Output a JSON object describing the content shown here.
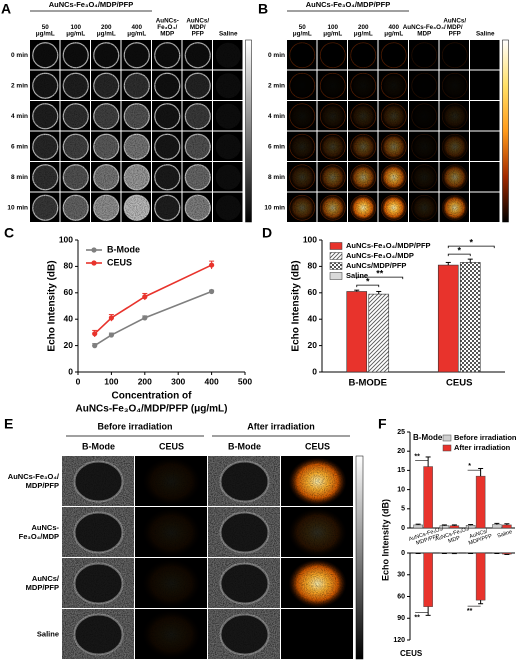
{
  "panels": {
    "A": {
      "letter": "A",
      "title": "AuNCs-Fe₃O₄/MDP/PFP",
      "columns": [
        [
          "50",
          "μg/mL"
        ],
        [
          "100",
          "μg/mL"
        ],
        [
          "200",
          "μg/mL"
        ],
        [
          "400",
          "μg/mL"
        ],
        [
          "AuNCs-",
          "Fe₃O₄/",
          "MDP"
        ],
        [
          "AuNCs/",
          "MDP/",
          "PFP"
        ],
        "Saline"
      ],
      "rows": [
        "0 min",
        "2 min",
        "4 min",
        "6 min",
        "8 min",
        "10 min"
      ]
    },
    "B": {
      "letter": "B",
      "title": "AuNCs-Fe₃O₄/MDP/PFP",
      "columns": [
        [
          "50",
          "μg/mL"
        ],
        [
          "100",
          "μg/mL"
        ],
        [
          "200",
          "μg/mL"
        ],
        [
          "400",
          "μg/mL"
        ],
        [
          "AuNCs-Fe₃O₄/",
          "MDP"
        ],
        [
          "AuNCs/",
          "MDP/",
          "PFP"
        ],
        "Saline"
      ],
      "rows": [
        "0 min",
        "2 min",
        "4 min",
        "6 min",
        "8 min",
        "10 min"
      ]
    },
    "E": {
      "letter": "E",
      "groups": [
        "Before irradiation",
        "After irradiation"
      ],
      "modes": [
        "B-Mode",
        "CEUS",
        "B-Mode",
        "CEUS"
      ],
      "rows": [
        [
          "AuNCs-Fe₃O₄/",
          "MDP/PFP"
        ],
        [
          "AuNCs-",
          "Fe₃O₄/MDP"
        ],
        [
          "AuNCs/",
          "MDP/PFP"
        ],
        "Saline"
      ]
    }
  },
  "chart_data": [
    {
      "type": "line",
      "letter": "C",
      "ylabel": "Echo Intensity (dB)",
      "xlabel": [
        "Concentration of",
        "AuNCs-Fe₃O₄/MDP/PFP (μg/mL)"
      ],
      "x": [
        50,
        100,
        200,
        400
      ],
      "series": [
        {
          "name": "B-Mode",
          "color": "#7f7f7f",
          "values": [
            20,
            28,
            41,
            61
          ],
          "errors": [
            1.5,
            1.5,
            1.5,
            1
          ]
        },
        {
          "name": "CEUS",
          "color": "#e8332c",
          "values": [
            29,
            41,
            57,
            81
          ],
          "errors": [
            2.5,
            2.5,
            2.5,
            3
          ]
        }
      ],
      "xlim": [
        0,
        500
      ],
      "xticks": [
        0,
        100,
        200,
        300,
        400,
        500
      ],
      "ylim": [
        0,
        100
      ],
      "yticks": [
        0,
        20,
        40,
        60,
        80,
        100
      ],
      "legend": "upper left"
    },
    {
      "type": "bar",
      "letter": "D",
      "ylabel": "Echo Intensity (dB)",
      "categories": [
        "B-MODE",
        "CEUS"
      ],
      "series": [
        {
          "name": "AuNCs-Fe₃O₄/MDP/PFP",
          "color": "#e8332c",
          "values": [
            61,
            81
          ],
          "errors": [
            1,
            2
          ]
        },
        {
          "name": "AuNCs-Fe₃O₄/MDP",
          "color": "#555555",
          "pattern": "hatch",
          "values": [
            59,
            null
          ],
          "errors": [
            2,
            null
          ]
        },
        {
          "name": "AuNCs/MDP/PFP",
          "color": "#555555",
          "pattern": "checker",
          "values": [
            null,
            83
          ],
          "errors": [
            null,
            2.5
          ]
        },
        {
          "name": "Saline",
          "color": "#d9d9d9",
          "values": [
            null,
            null
          ],
          "errors": [
            null,
            null
          ]
        }
      ],
      "ylim": [
        0,
        100
      ],
      "yticks": [
        0,
        20,
        40,
        60,
        80,
        100
      ],
      "annotations": [
        "*",
        "**",
        "*",
        "*"
      ],
      "legend": "upper left"
    },
    {
      "type": "split_bar",
      "letter": "F",
      "ylabel": "Echo Intensity (dB)",
      "categories": [
        [
          "AuNCs-Fe₃O₄/",
          "MDP/PFP"
        ],
        [
          "AuNCs-Fe₃O₄/",
          "MDP"
        ],
        [
          "AuNCs/",
          "MDP/PFP"
        ],
        "Saline"
      ],
      "series": [
        {
          "name": "Before irradiation",
          "color": "#cfcfcf"
        },
        {
          "name": "After irradiation",
          "color": "#e8332c"
        }
      ],
      "panels": [
        {
          "title": "B-Mode",
          "ylim": [
            0,
            25
          ],
          "yticks": [
            0,
            5,
            10,
            15,
            20,
            25
          ],
          "values": [
            [
              0.8,
              0.6,
              0.7,
              0.9
            ],
            [
              16,
              0.6,
              13.5,
              0.8
            ]
          ],
          "errors": [
            [
              0.2,
              0.2,
              0.2,
              0.3
            ],
            [
              2.5,
              0.2,
              2,
              0.3
            ]
          ],
          "annotations": [
            "**",
            "*"
          ]
        },
        {
          "title": "CEUS",
          "ylim": [
            0,
            120
          ],
          "yticks": [
            0,
            30,
            60,
            90,
            120
          ],
          "inverted": true,
          "values": [
            [
              0.5,
              0.5,
              0.5,
              0.5
            ],
            [
              74,
              0.5,
              65,
              1.5
            ]
          ],
          "errors": [
            [
              0.2,
              0.2,
              0.2,
              0.2
            ],
            [
              12,
              0.3,
              5,
              0.5
            ]
          ],
          "annotations": [
            "**",
            "**"
          ]
        }
      ],
      "legend": "upper right"
    }
  ]
}
